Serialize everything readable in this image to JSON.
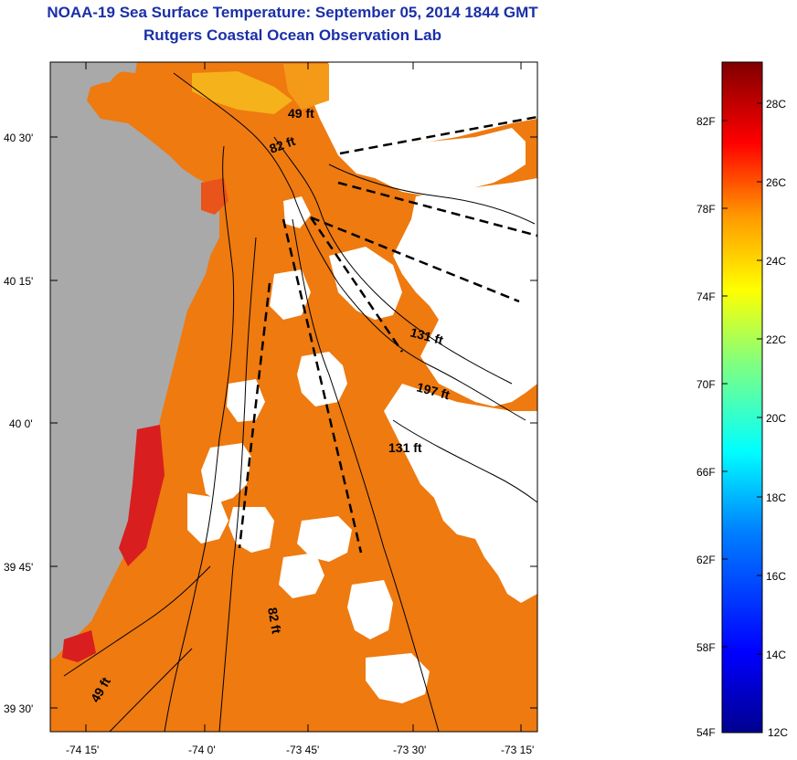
{
  "header": {
    "title": "NOAA-19 Sea Surface Temperature:  September 05, 2014 1844 GMT",
    "subtitle": "Rutgers Coastal Ocean Observation Lab"
  },
  "map": {
    "lat_ticks": [
      "40 30'",
      "40 15'",
      "40 0'",
      "39 45'",
      "39 30'"
    ],
    "lon_ticks": [
      "-74 15'",
      "-74 0'",
      "-73 45'",
      "-73 30'",
      "-73 15'"
    ],
    "contour_labels": [
      "49 ft",
      "82 ft",
      "131 ft",
      "197 ft",
      "131 ft",
      "82 ft",
      "49 ft"
    ],
    "colors": {
      "land": "#a9a9a9",
      "no_data": "#ffffff",
      "sst_main": "#ee7a10",
      "sst_warm": "#d81e1e",
      "sst_cool": "#f5b21a"
    }
  },
  "colorbar": {
    "fahrenheit": [
      "82F",
      "78F",
      "74F",
      "70F",
      "66F",
      "62F",
      "58F",
      "54F"
    ],
    "celsius": [
      "28C",
      "26C",
      "24C",
      "22C",
      "20C",
      "18C",
      "16C",
      "14C",
      "12C"
    ]
  }
}
